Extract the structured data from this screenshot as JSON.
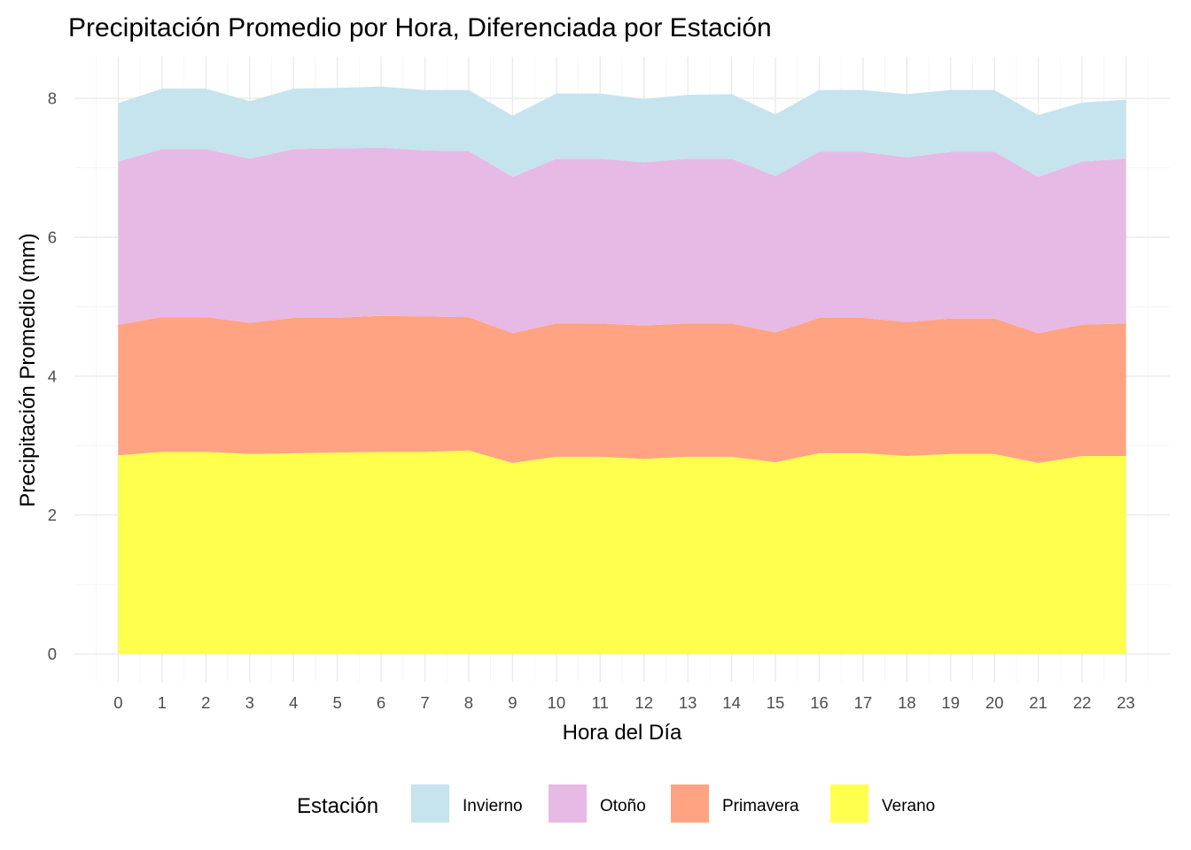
{
  "chart_data": {
    "type": "area",
    "stacked": true,
    "title": "Precipitación Promedio por Hora, Diferenciada por Estación",
    "xlabel": "Hora del Día",
    "ylabel": "Precipitación Promedio (mm)",
    "x": [
      0,
      1,
      2,
      3,
      4,
      5,
      6,
      7,
      8,
      9,
      10,
      11,
      12,
      13,
      14,
      15,
      16,
      17,
      18,
      19,
      20,
      21,
      22,
      23
    ],
    "xlim": [
      -1,
      24
    ],
    "ylim": [
      -0.4,
      8.6
    ],
    "yticks": [
      0,
      2,
      4,
      6,
      8
    ],
    "grid": true,
    "legend": {
      "title": "Estación",
      "position": "bottom"
    },
    "series": [
      {
        "name": "Verano",
        "color": "#FFFF4D",
        "values": [
          2.86,
          2.91,
          2.91,
          2.88,
          2.89,
          2.9,
          2.91,
          2.91,
          2.93,
          2.75,
          2.84,
          2.84,
          2.81,
          2.84,
          2.84,
          2.76,
          2.89,
          2.89,
          2.85,
          2.88,
          2.88,
          2.75,
          2.85,
          2.85
        ]
      },
      {
        "name": "Primavera",
        "color": "#FFA383",
        "values": [
          1.88,
          1.94,
          1.94,
          1.89,
          1.95,
          1.94,
          1.96,
          1.95,
          1.92,
          1.87,
          1.92,
          1.92,
          1.92,
          1.92,
          1.92,
          1.87,
          1.95,
          1.95,
          1.93,
          1.95,
          1.95,
          1.87,
          1.89,
          1.91
        ]
      },
      {
        "name": "Otoño",
        "color": "#E6BAE5",
        "values": [
          2.35,
          2.42,
          2.42,
          2.36,
          2.43,
          2.44,
          2.42,
          2.39,
          2.39,
          2.25,
          2.37,
          2.37,
          2.35,
          2.37,
          2.37,
          2.25,
          2.39,
          2.39,
          2.37,
          2.4,
          2.4,
          2.25,
          2.35,
          2.37
        ]
      },
      {
        "name": "Invierno",
        "color": "#C6E4ED",
        "values": [
          0.84,
          0.87,
          0.87,
          0.83,
          0.87,
          0.87,
          0.88,
          0.87,
          0.88,
          0.88,
          0.94,
          0.94,
          0.91,
          0.92,
          0.93,
          0.89,
          0.89,
          0.89,
          0.91,
          0.89,
          0.89,
          0.89,
          0.85,
          0.85
        ]
      }
    ],
    "legend_order": [
      "Invierno",
      "Otoño",
      "Primavera",
      "Verano"
    ]
  }
}
